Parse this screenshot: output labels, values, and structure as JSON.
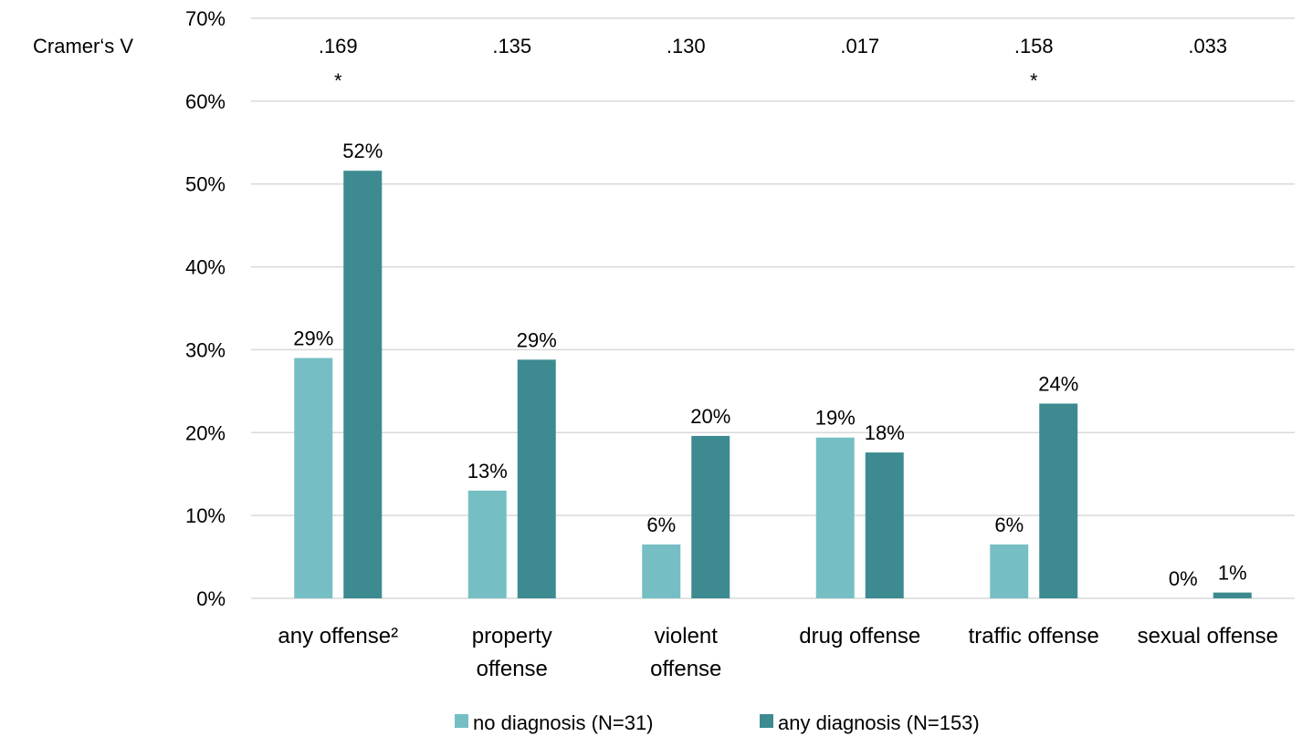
{
  "chart_data": {
    "type": "bar",
    "categories": [
      [
        "any offense²"
      ],
      [
        "property",
        "offense"
      ],
      [
        "violent",
        "offense"
      ],
      [
        "drug offense"
      ],
      [
        "traffic offense"
      ],
      [
        "sexual offense"
      ]
    ],
    "series": [
      {
        "name": "no diagnosis (N=31)",
        "color": "#75bfc4",
        "values": [
          29,
          13,
          6.5,
          19.4,
          6.5,
          0
        ],
        "labels": [
          "29%",
          "13%",
          "6%",
          "19%",
          "6%",
          "0%"
        ]
      },
      {
        "name": "any diagnosis (N=153)",
        "color": "#3d8b91",
        "values": [
          51.6,
          28.8,
          19.6,
          17.6,
          23.5,
          0.7
        ],
        "labels": [
          "52%",
          "29%",
          "20%",
          "18%",
          "24%",
          "1%"
        ]
      }
    ],
    "y_ticks": [
      "0%",
      "10%",
      "20%",
      "30%",
      "40%",
      "50%",
      "60%",
      "70%"
    ],
    "ylim": [
      0,
      70
    ],
    "grid": true,
    "legend_position": "bottom",
    "cramers_v": {
      "label": "Cramer‘s V",
      "values": [
        ".169",
        ".135",
        ".130",
        ".017",
        ".158",
        ".033"
      ],
      "significance": [
        "*",
        "",
        "",
        "",
        "*",
        ""
      ]
    }
  }
}
